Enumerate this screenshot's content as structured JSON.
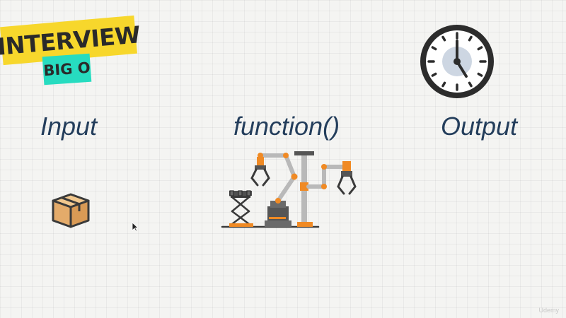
{
  "badge": {
    "title": "INTERVIEW",
    "subtitle": "BIG O"
  },
  "labels": {
    "input": "Input",
    "function": "function()",
    "output": "Output"
  },
  "icons": {
    "clock": "clock-icon",
    "box": "package-box-icon",
    "robot": "robotic-arms-machine-icon",
    "cursor": "mouse-pointer-icon"
  },
  "colors": {
    "badge_yellow": "#f7d72c",
    "badge_teal": "#27dcc0",
    "label_text": "#243e5c",
    "accent_orange": "#f08a24"
  },
  "watermark": "Udemy"
}
